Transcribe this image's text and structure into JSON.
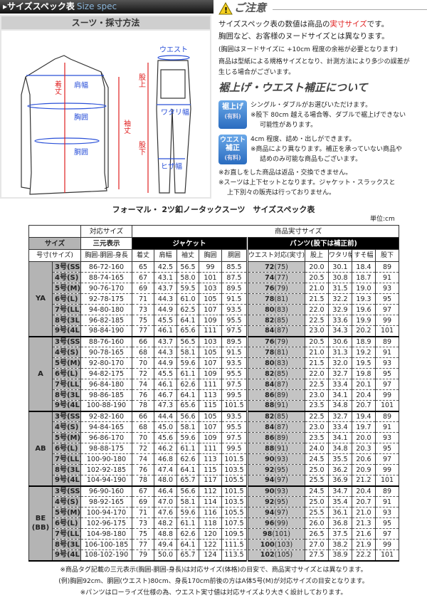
{
  "header": {
    "title": "サイズスペック表",
    "title_en": "Size spec"
  },
  "diagram": {
    "title": "スーツ・採寸方法",
    "labels": {
      "shoulder": "肩幅",
      "length": "着丈",
      "chest": "胸囲",
      "waist": "胴囲",
      "sleeve": "袖丈",
      "pants_waist": "ウエスト",
      "rise": "股上",
      "thigh": "ワタリ幅",
      "inseam": "股下",
      "knee": "ヒザ幅"
    }
  },
  "caution": {
    "title": "ご注意",
    "line1_pre": "サイズスペック表の数値は商品の",
    "line1_red": "実寸サイズ",
    "line1_post": "です。",
    "line2": "胸囲など、お客様のヌードサイズとは異なります。",
    "line3": "(胸囲はヌードサイズに +10cm 程度の余裕が必要となります)",
    "line4": "商品は型紙による規格サイズとなり、計測方法により多少の誤差が",
    "line5": "生じる場合がございます。"
  },
  "alteration": {
    "title": "裾上げ・ウエスト補正について",
    "hem": {
      "badge1": "裾上げ",
      "badge2": "(有料)",
      "line1": "シングル・ダブルがお選びいただけます。",
      "line2": "※股下 80cm 越える場合等、ダブルで裾上げできない",
      "line3": "可能性があります。"
    },
    "waist": {
      "badge1": "ウエスト",
      "badge2": "補正",
      "badge3": "(有料)",
      "line1": "4cm 程度、詰め・出しができます。",
      "line2": "※商品により異なります。補正を承っていない商品や",
      "line3": "詰めのみ可能な商品もございます。"
    },
    "note1": "※お直しをした商品は返品・交換できません。",
    "note2": "※スーツは上下セットとなります。ジャケット・スラックスと",
    "note3": "上下別々の販売は行っておりません。"
  },
  "table": {
    "title": "フォーマル・ 2ツ釦ノータックスーツ　サイズスペック表",
    "unit": "単位:cm",
    "h_corr": "対応サイズ",
    "h_actual": "商品実寸サイズ",
    "h_size": "サイズ",
    "h_3d": "三元表示",
    "h_jacket": "ジャケット",
    "h_pants": "パンツ(股下は補正前)",
    "cols": [
      "号寸(サイズ)",
      "胸囲-胴囲-身長",
      "着丈",
      "肩幅",
      "袖丈",
      "胸囲",
      "胴囲",
      "ウエスト対応(実寸)",
      "股上",
      "ワタリ幅",
      "すそ幅",
      "股下"
    ],
    "groups": [
      {
        "body": "YA",
        "rows": [
          [
            "3号(SS)",
            "86-72-160",
            "65",
            "42.5",
            "56.5",
            "99",
            "85.5",
            "72",
            "75",
            "20.0",
            "30.1",
            "18.4",
            "89"
          ],
          [
            "4号(S)",
            "88-74-165",
            "67",
            "43.1",
            "58.0",
            "101",
            "87.5",
            "74",
            "77",
            "20.5",
            "30.8",
            "18.7",
            "91"
          ],
          [
            "5号(M)",
            "90-76-170",
            "69",
            "43.7",
            "59.5",
            "103",
            "89.5",
            "76",
            "79",
            "21.0",
            "31.5",
            "19.0",
            "93"
          ],
          [
            "6号(L)",
            "92-78-175",
            "71",
            "44.3",
            "61.0",
            "105",
            "91.5",
            "78",
            "81",
            "21.5",
            "32.2",
            "19.3",
            "95"
          ],
          [
            "7号(LL)",
            "94-80-180",
            "73",
            "44.9",
            "62.5",
            "107",
            "93.5",
            "80",
            "83",
            "22.0",
            "32.9",
            "19.6",
            "97"
          ],
          [
            "8号(3L)",
            "96-82-185",
            "75",
            "45.5",
            "64.1",
            "109",
            "95.5",
            "82",
            "85",
            "22.5",
            "33.6",
            "19.9",
            "99"
          ],
          [
            "9号(4L)",
            "98-84-190",
            "77",
            "46.1",
            "65.6",
            "111",
            "97.5",
            "84",
            "87",
            "23.0",
            "34.3",
            "20.2",
            "101"
          ]
        ]
      },
      {
        "body": "A",
        "rows": [
          [
            "3号(SS)",
            "88-76-160",
            "66",
            "43.7",
            "56.5",
            "103",
            "89.5",
            "76",
            "79",
            "20.5",
            "30.6",
            "18.9",
            "89"
          ],
          [
            "4号(S)",
            "90-78-165",
            "68",
            "44.3",
            "58.1",
            "105",
            "91.5",
            "78",
            "81",
            "21.0",
            "31.3",
            "19.2",
            "91"
          ],
          [
            "5号(M)",
            "92-80-170",
            "70",
            "44.9",
            "59.6",
            "107",
            "93.5",
            "80",
            "83",
            "21.5",
            "32.0",
            "19.5",
            "93"
          ],
          [
            "6号(L)",
            "94-82-175",
            "72",
            "45.5",
            "61.1",
            "109",
            "95.5",
            "82",
            "85",
            "22.0",
            "32.7",
            "19.8",
            "95"
          ],
          [
            "7号(LL)",
            "96-84-180",
            "74",
            "46.1",
            "62.6",
            "111",
            "97.5",
            "84",
            "87",
            "22.5",
            "33.4",
            "20.1",
            "97"
          ],
          [
            "8号(3L)",
            "98-86-185",
            "76",
            "46.7",
            "64.1",
            "113",
            "99.5",
            "86",
            "89",
            "23.0",
            "34.1",
            "20.4",
            "99"
          ],
          [
            "9号(4L)",
            "100-88-190",
            "78",
            "47.3",
            "65.6",
            "115",
            "101.5",
            "88",
            "91",
            "23.5",
            "34.8",
            "20.7",
            "101"
          ]
        ]
      },
      {
        "body": "AB",
        "rows": [
          [
            "3号(SS)",
            "92-82-160",
            "66",
            "44.4",
            "56.6",
            "105",
            "93.5",
            "82",
            "85",
            "22.5",
            "32.7",
            "19.4",
            "89"
          ],
          [
            "4号(S)",
            "94-84-165",
            "68",
            "45.0",
            "58.1",
            "107",
            "95.5",
            "84",
            "87",
            "23.0",
            "33.4",
            "19.7",
            "91"
          ],
          [
            "5号(M)",
            "96-86-170",
            "70",
            "45.6",
            "59.6",
            "109",
            "97.5",
            "86",
            "89",
            "23.5",
            "34.1",
            "20.0",
            "93"
          ],
          [
            "6号(L)",
            "98-88-175",
            "72",
            "46.2",
            "61.1",
            "111",
            "99.5",
            "88",
            "91",
            "24.0",
            "34.8",
            "20.3",
            "95"
          ],
          [
            "7号(LL)",
            "100-90-180",
            "74",
            "46.8",
            "62.6",
            "113",
            "101.5",
            "90",
            "93",
            "24.5",
            "35.5",
            "20.6",
            "97"
          ],
          [
            "8号(3L)",
            "102-92-185",
            "76",
            "47.4",
            "64.1",
            "115",
            "103.5",
            "92",
            "95",
            "25.0",
            "36.2",
            "20.9",
            "99"
          ],
          [
            "9号(4L)",
            "104-94-190",
            "78",
            "48.0",
            "65.7",
            "117",
            "105.5",
            "94",
            "97",
            "25.5",
            "36.9",
            "21.2",
            "101"
          ]
        ]
      },
      {
        "body": "BE",
        "body2": "(BB)",
        "rows": [
          [
            "3号(SS)",
            "96-90-160",
            "67",
            "46.4",
            "56.6",
            "112",
            "101.5",
            "90",
            "93",
            "24.5",
            "34.7",
            "20.4",
            "89"
          ],
          [
            "4号(S)",
            "98-92-165",
            "69",
            "47.0",
            "58.1",
            "114",
            "103.5",
            "92",
            "95",
            "25.0",
            "35.4",
            "20.7",
            "91"
          ],
          [
            "5号(M)",
            "100-94-170",
            "71",
            "47.6",
            "59.6",
            "116",
            "105.5",
            "94",
            "97",
            "25.5",
            "36.1",
            "21.0",
            "93"
          ],
          [
            "6号(L)",
            "102-96-175",
            "73",
            "48.2",
            "61.1",
            "118",
            "107.5",
            "96",
            "99",
            "26.0",
            "36.8",
            "21.3",
            "95"
          ],
          [
            "7号(LL)",
            "104-98-180",
            "75",
            "48.8",
            "62.6",
            "120",
            "109.5",
            "98",
            "101",
            "26.5",
            "37.5",
            "21.6",
            "97"
          ],
          [
            "8号(3L)",
            "106-100-185",
            "77",
            "49.4",
            "64.1",
            "122",
            "111.5",
            "100",
            "103",
            "27.0",
            "38.2",
            "21.9",
            "99"
          ],
          [
            "9号(4L)",
            "108-102-190",
            "79",
            "50.0",
            "65.7",
            "124",
            "113.5",
            "102",
            "105",
            "27.5",
            "38.9",
            "22.2",
            "101"
          ]
        ]
      }
    ]
  },
  "footer": {
    "note1": "※商品タグ記載の三元表示(胸囲-胴囲-身長)は対応サイズ(体格)の目安で、商品実寸サイズとは異なります。",
    "note2": "(例)胸囲92cm、胴囲(ウエスト)80cm、身長170cm前後の方はA体5号(M)が対応サイズの目安となります。",
    "note3": "※パンツはローライズ仕様の為、ウエスト実寸値は対応サイズより大きく設計しております。"
  },
  "colors": {
    "accent_red": "#e02020",
    "measure_blue": "#2a50d8",
    "badge_blue": "#2a6cc0"
  }
}
